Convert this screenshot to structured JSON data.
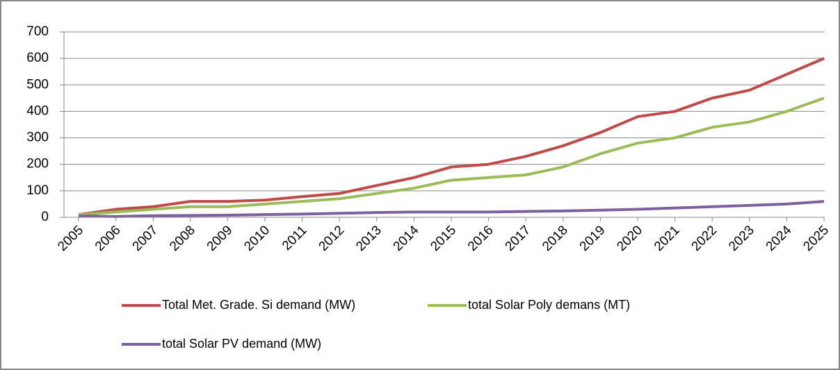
{
  "chart_data": {
    "type": "line",
    "categories": [
      "2005",
      "2006",
      "2007",
      "2008",
      "2009",
      "2010",
      "2011",
      "2012",
      "2013",
      "2014",
      "2015",
      "2016",
      "2017",
      "2018",
      "2019",
      "2020",
      "2021",
      "2022",
      "2023",
      "2024",
      "2025"
    ],
    "series": [
      {
        "name": "Total Met. Grade. Si demand (MW)",
        "color": "#be4b48",
        "values": [
          10,
          30,
          40,
          60,
          60,
          65,
          78,
          90,
          120,
          150,
          190,
          200,
          230,
          270,
          320,
          380,
          400,
          450,
          480,
          540,
          600
        ]
      },
      {
        "name": "total Solar Poly demans (MT)",
        "color": "#9bbb59",
        "values": [
          10,
          20,
          30,
          40,
          40,
          50,
          60,
          70,
          90,
          110,
          140,
          150,
          160,
          190,
          240,
          280,
          300,
          340,
          360,
          400,
          450
        ]
      },
      {
        "name": "total Solar PV demand (MW)",
        "color": "#7d60a0",
        "values": [
          5,
          3,
          6,
          7,
          8,
          10,
          12,
          15,
          18,
          20,
          20,
          20,
          22,
          24,
          27,
          30,
          35,
          40,
          45,
          50,
          60
        ]
      }
    ],
    "ylim": [
      0,
      700
    ],
    "yticks": [
      0,
      100,
      200,
      300,
      400,
      500,
      600,
      700
    ],
    "grid": true,
    "legend": "bottom"
  }
}
